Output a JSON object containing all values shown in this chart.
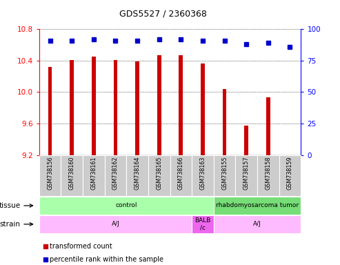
{
  "title": "GDS5527 / 2360368",
  "samples": [
    "GSM738156",
    "GSM738160",
    "GSM738161",
    "GSM738162",
    "GSM738164",
    "GSM738165",
    "GSM738166",
    "GSM738163",
    "GSM738155",
    "GSM738157",
    "GSM738158",
    "GSM738159"
  ],
  "bar_values": [
    10.32,
    10.41,
    10.45,
    10.41,
    10.39,
    10.47,
    10.47,
    10.36,
    10.04,
    9.57,
    9.93,
    9.2
  ],
  "percentile_values": [
    91,
    91,
    92,
    91,
    91,
    92,
    92,
    91,
    91,
    88,
    89,
    86
  ],
  "ylim_left": [
    9.2,
    10.8
  ],
  "ylim_right": [
    0,
    100
  ],
  "yticks_left": [
    9.2,
    9.6,
    10.0,
    10.4,
    10.8
  ],
  "yticks_right": [
    0,
    25,
    50,
    75,
    100
  ],
  "bar_color": "#cc0000",
  "dot_color": "#0000cc",
  "tissue_groups": [
    {
      "label": "control",
      "start": 0,
      "end": 8,
      "color": "#aaffaa"
    },
    {
      "label": "rhabdomyosarcoma tumor",
      "start": 8,
      "end": 12,
      "color": "#77dd77"
    }
  ],
  "strain_groups": [
    {
      "label": "A/J",
      "start": 0,
      "end": 7,
      "color": "#ffbbff"
    },
    {
      "label": "BALB\n/c",
      "start": 7,
      "end": 8,
      "color": "#ee66ee"
    },
    {
      "label": "A/J",
      "start": 8,
      "end": 12,
      "color": "#ffbbff"
    }
  ],
  "xticklabel_bg": "#cccccc",
  "background_color": "#ffffff"
}
